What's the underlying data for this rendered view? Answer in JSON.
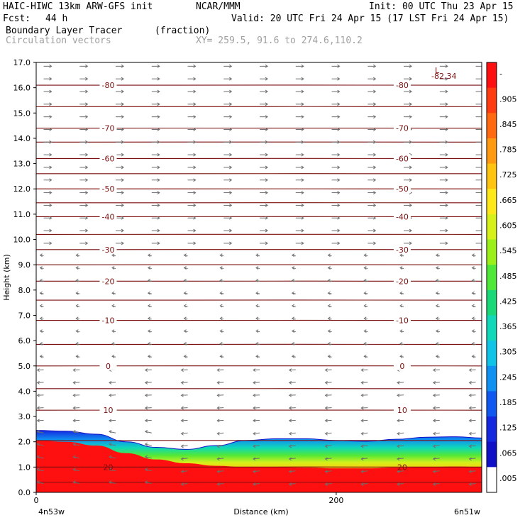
{
  "header": {
    "model": "HAIC-HIWC 13km ARW-GFS init",
    "org": "NCAR/MMM",
    "init": "Init: 00 UTC Thu 23 Apr 15",
    "fcst_label": "Fcst:",
    "fcst_value": "44 h",
    "valid": "Valid: 20 UTC Fri 24 Apr 15 (17 LST Fri 24 Apr 15)",
    "field": "Boundary Layer Tracer",
    "field_units": "(fraction)",
    "vectors": "Circulation vectors",
    "xy": "XY= 259.5, 91.6 to 274.6,110.2"
  },
  "colors": {
    "isotherm": "#7a0f0f",
    "vector": "#6e6e6e"
  },
  "chart_data": {
    "type": "heatmap",
    "title": "Boundary Layer Tracer",
    "xlabel": "Distance (km)",
    "ylabel": "Height (km)",
    "xlim": [
      0,
      297
    ],
    "ylim": [
      0,
      17
    ],
    "x_ticks": [
      "0",
      "200"
    ],
    "x_ends": [
      "4n53w",
      "6n51w"
    ],
    "y_ticks": [
      "0.0",
      "1.0",
      "2.0",
      "3.0",
      "4.0",
      "5.0",
      "6.0",
      "7.0",
      "8.0",
      "9.0",
      "10.0",
      "11.0",
      "12.0",
      "13.0",
      "14.0",
      "15.0",
      "16.0",
      "17.0"
    ],
    "colorbar": {
      "labels": [
        "-",
        ".905",
        ".845",
        ".785",
        ".725",
        ".665",
        ".605",
        ".545",
        ".485",
        ".425",
        ".365",
        ".305",
        ".245",
        ".185",
        ".125",
        ".065",
        ".005"
      ],
      "colors": [
        "#ff1010",
        "#ff3c10",
        "#ff6a10",
        "#ff9a10",
        "#ffc410",
        "#ffe81a",
        "#d6f01a",
        "#9cf01a",
        "#50e838",
        "#18d878",
        "#10d8b8",
        "#10c4e8",
        "#1090f0",
        "#1058f0",
        "#1428e0",
        "#1010c8",
        "#ffffff"
      ]
    },
    "tracer_profile": {
      "x_km": [
        0,
        20,
        40,
        60,
        80,
        100,
        120,
        140,
        160,
        180,
        200,
        220,
        240,
        260,
        280,
        297
      ],
      "top_km": [
        2.45,
        2.42,
        2.3,
        2.0,
        1.78,
        1.7,
        1.85,
        2.05,
        2.12,
        2.12,
        2.05,
        2.02,
        2.1,
        2.18,
        2.2,
        2.15
      ],
      "red_top_km": [
        2.05,
        2.0,
        1.85,
        1.55,
        1.3,
        1.15,
        1.05,
        1.0,
        1.0,
        0.98,
        0.95,
        0.95,
        0.98,
        1.0,
        1.02,
        1.0
      ]
    },
    "isotherms": [
      {
        "label": "-80",
        "height_km": 16.1
      },
      {
        "label": "-70",
        "height_km": 14.4
      },
      {
        "label": "-60",
        "height_km": 13.2
      },
      {
        "label": "-50",
        "height_km": 12.0
      },
      {
        "label": "-40",
        "height_km": 10.9
      },
      {
        "label": "-30",
        "height_km": 9.6
      },
      {
        "label": "-20",
        "height_km": 8.35
      },
      {
        "label": "-10",
        "height_km": 6.8
      },
      {
        "label": "0",
        "height_km": 5.0
      },
      {
        "label": "10",
        "height_km": 3.25
      },
      {
        "label": "20",
        "height_km": 1.0
      }
    ],
    "unlabeled_isotherm_heights_km": [
      15.25,
      13.85,
      12.6,
      11.45,
      10.2,
      9.0,
      7.6,
      5.85,
      4.1,
      2.05,
      0.4
    ],
    "min_marker": {
      "symbol": "L",
      "value": "-82.34",
      "x_km": 264,
      "height_km": 16.75
    }
  }
}
